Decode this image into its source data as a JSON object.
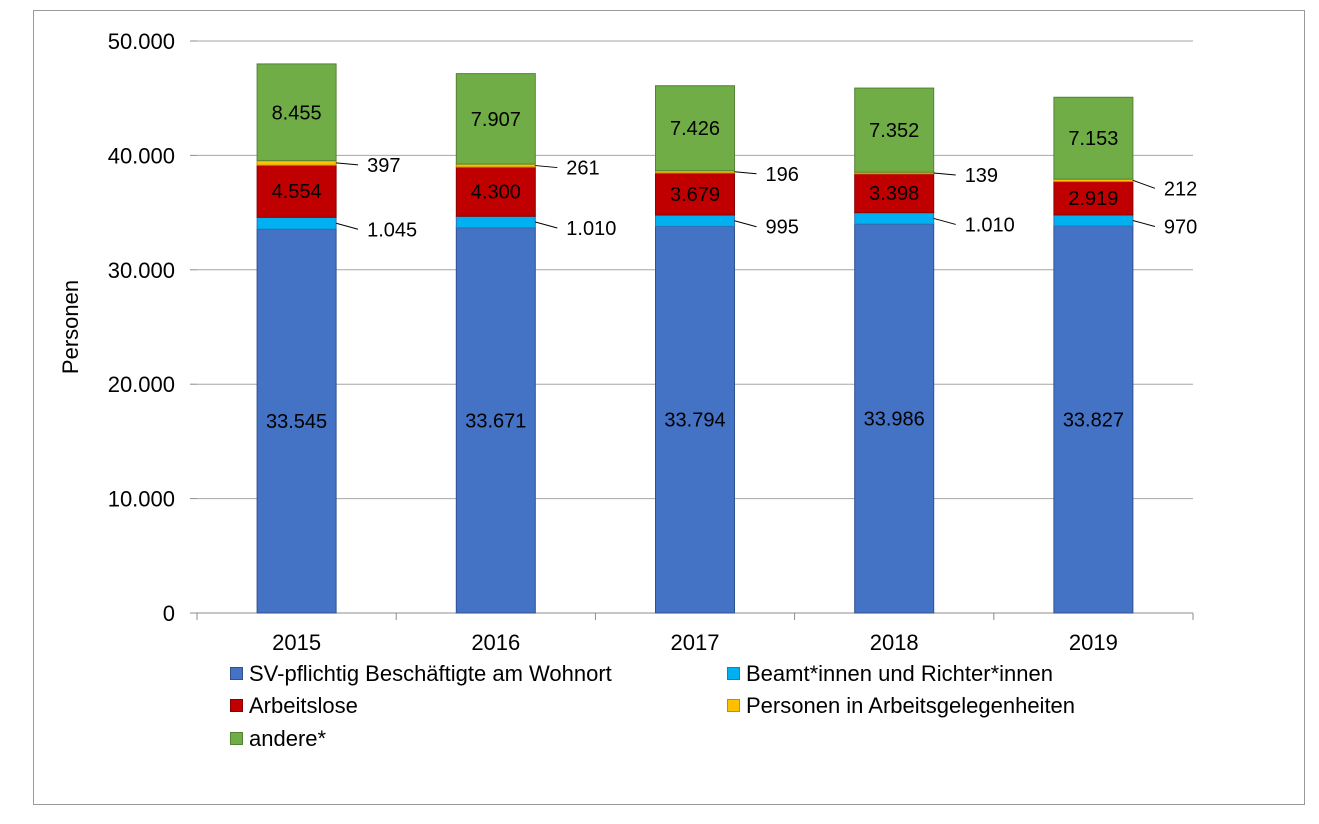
{
  "chart_data": {
    "type": "bar",
    "stacked": true,
    "categories": [
      "2015",
      "2016",
      "2017",
      "2018",
      "2019"
    ],
    "series": [
      {
        "name": "SV-pflichtig Beschäftigte am Wohnort",
        "color": "#4472c4",
        "values": [
          33545,
          33671,
          33794,
          33986,
          33827
        ],
        "labels": [
          "33.545",
          "33.671",
          "33.794",
          "33.986",
          "33.827"
        ],
        "label_position": "inside"
      },
      {
        "name": "Beamt*innen und Richter*innen",
        "color": "#00b0f0",
        "values": [
          1045,
          1010,
          995,
          1010,
          970
        ],
        "labels": [
          "1.045",
          "1.010",
          "995",
          "1.010",
          "970"
        ],
        "label_position": "outside"
      },
      {
        "name": "Arbeitslose",
        "color": "#c00000",
        "values": [
          4554,
          4300,
          3679,
          3398,
          2919
        ],
        "labels": [
          "4.554",
          "4.300",
          "3.679",
          "3.398",
          "2.919"
        ],
        "label_position": "inside"
      },
      {
        "name": "Personen in Arbeitsgelegenheiten",
        "color": "#ffc000",
        "values": [
          397,
          261,
          196,
          139,
          212
        ],
        "labels": [
          "397",
          "261",
          "196",
          "139",
          "212"
        ],
        "label_position": "outside"
      },
      {
        "name": "andere*",
        "color": "#70ad47",
        "values": [
          8455,
          7907,
          7426,
          7352,
          7153
        ],
        "labels": [
          "8.455",
          "7.907",
          "7.426",
          "7.352",
          "7.153"
        ],
        "label_position": "inside"
      }
    ],
    "ylabel": "Personen",
    "xlabel": "",
    "ylim": [
      0,
      50000
    ],
    "yticks": [
      0,
      10000,
      20000,
      30000,
      40000,
      50000
    ],
    "ytick_labels": [
      "0",
      "10.000",
      "20.000",
      "30.000",
      "40.000",
      "50.000"
    ],
    "grid": true,
    "legend_position": "bottom"
  }
}
